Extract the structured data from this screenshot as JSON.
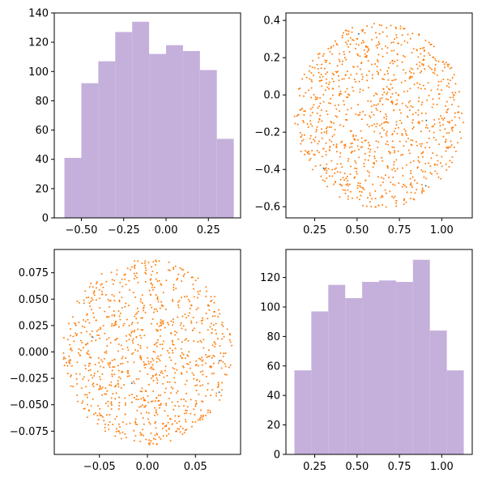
{
  "colors": {
    "hist": "#c5b0dc",
    "scatter": "#ff7f0e",
    "scatter_alt": "#1f77b4",
    "axis": "#000000"
  },
  "chart_data": [
    {
      "type": "bar",
      "title": "",
      "xlabel": "",
      "ylabel": "",
      "bin_edges": [
        -0.6,
        -0.5,
        -0.4,
        -0.3,
        -0.2,
        -0.1,
        0.0,
        0.1,
        0.2,
        0.3,
        0.4
      ],
      "values": [
        41,
        92,
        107,
        127,
        134,
        112,
        118,
        114,
        101,
        54
      ],
      "xlim": [
        -0.66,
        0.44
      ],
      "ylim": [
        0,
        140
      ],
      "xticks": [
        -0.5,
        -0.25,
        0.0,
        0.25
      ],
      "xtick_labels": [
        "−0.50",
        "−0.25",
        "0.00",
        "0.25"
      ],
      "yticks": [
        0,
        20,
        40,
        60,
        80,
        100,
        120,
        140
      ],
      "ytick_labels": [
        "0",
        "20",
        "40",
        "60",
        "80",
        "100",
        "120",
        "140"
      ],
      "grid": false
    },
    {
      "type": "scatter",
      "title": "",
      "xlabel": "",
      "ylabel": "",
      "center": [
        0.63,
        -0.11
      ],
      "radius": [
        0.5,
        0.5
      ],
      "n_points": 1000,
      "xlim": [
        0.08,
        1.18
      ],
      "ylim": [
        -0.66,
        0.44
      ],
      "xticks": [
        0.25,
        0.5,
        0.75,
        1.0
      ],
      "xtick_labels": [
        "0.25",
        "0.50",
        "0.75",
        "1.00"
      ],
      "yticks": [
        -0.6,
        -0.4,
        -0.2,
        0.0,
        0.2,
        0.4
      ],
      "ytick_labels": [
        "−0.6",
        "−0.4",
        "−0.2",
        "0.0",
        "0.2",
        "0.4"
      ],
      "grid": false
    },
    {
      "type": "scatter",
      "title": "",
      "xlabel": "",
      "ylabel": "",
      "center": [
        0.0,
        0.0
      ],
      "radius": [
        0.088,
        0.088
      ],
      "n_points": 1000,
      "xlim": [
        -0.097,
        0.097
      ],
      "ylim": [
        -0.097,
        0.097
      ],
      "xticks": [
        -0.05,
        0.0,
        0.05
      ],
      "xtick_labels": [
        "−0.05",
        "0.00",
        "0.05"
      ],
      "yticks": [
        -0.075,
        -0.05,
        -0.025,
        0.0,
        0.025,
        0.05,
        0.075
      ],
      "ytick_labels": [
        "−0.075",
        "−0.050",
        "−0.025",
        "0.000",
        "0.025",
        "0.050",
        "0.075"
      ],
      "grid": false
    },
    {
      "type": "bar",
      "title": "",
      "xlabel": "",
      "ylabel": "",
      "bin_edges": [
        0.13,
        0.23,
        0.33,
        0.43,
        0.53,
        0.63,
        0.73,
        0.83,
        0.93,
        1.03,
        1.13
      ],
      "values": [
        57,
        97,
        115,
        106,
        117,
        118,
        117,
        132,
        84,
        57
      ],
      "xlim": [
        0.08,
        1.18
      ],
      "ylim": [
        0,
        139
      ],
      "xticks": [
        0.25,
        0.5,
        0.75,
        1.0
      ],
      "xtick_labels": [
        "0.25",
        "0.50",
        "0.75",
        "1.00"
      ],
      "yticks": [
        0,
        20,
        40,
        60,
        80,
        100,
        120
      ],
      "ytick_labels": [
        "0",
        "20",
        "40",
        "60",
        "80",
        "100",
        "120"
      ],
      "grid": false
    }
  ]
}
